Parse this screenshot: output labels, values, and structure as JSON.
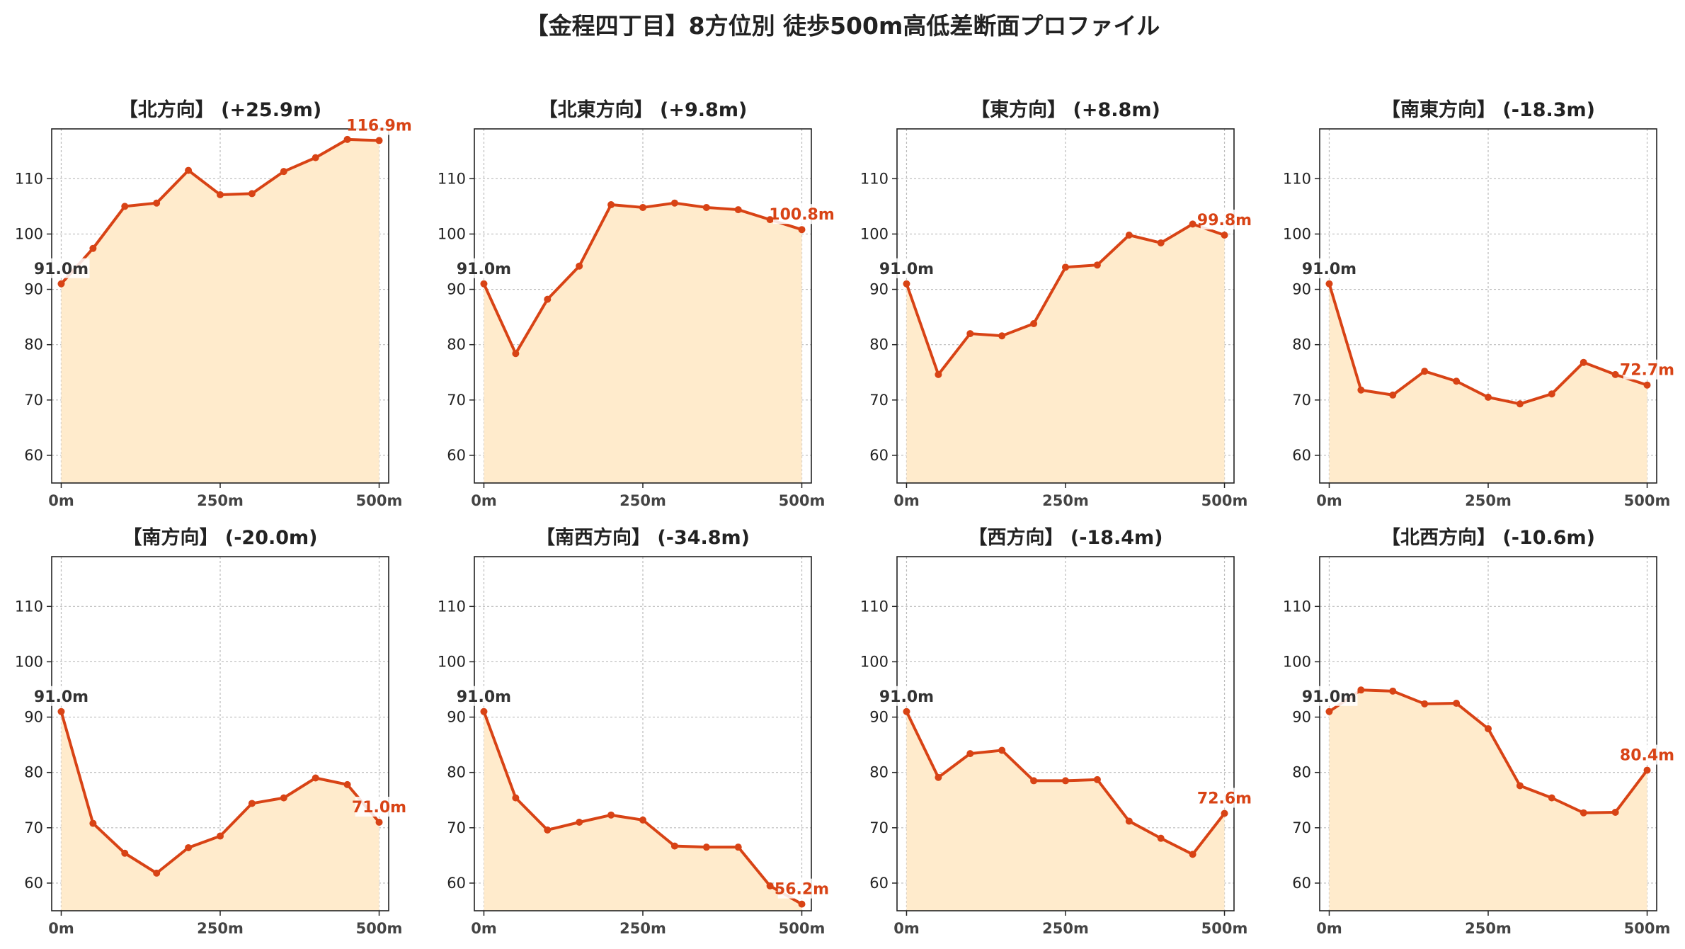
{
  "title": "【金程四丁目】8方位別 徒歩500m高低差断面プロファイル",
  "colors": {
    "line": "#D84315",
    "fill": "#FFEBCC",
    "start_label": "#333333",
    "end_label": "#D84315",
    "grid": "#bbbbbb",
    "axis": "#222222"
  },
  "chart_data": [
    {
      "type": "area",
      "title": "【北方向】 (+25.9m)",
      "x": [
        0,
        50,
        100,
        150,
        200,
        250,
        300,
        350,
        400,
        450,
        500
      ],
      "y": [
        91.0,
        97.4,
        105.0,
        105.6,
        111.5,
        107.1,
        107.3,
        111.3,
        113.8,
        117.1,
        116.9
      ],
      "xticks": [
        "0m",
        "250m",
        "500m"
      ],
      "yticks": [
        60,
        70,
        80,
        90,
        100,
        110
      ],
      "xlim": [
        -15,
        515
      ],
      "ylim": [
        55,
        119
      ],
      "grid": true,
      "start_label": "91.0m",
      "end_label": "116.9m"
    },
    {
      "type": "area",
      "title": "【北東方向】 (+9.8m)",
      "x": [
        0,
        50,
        100,
        150,
        200,
        250,
        300,
        350,
        400,
        450,
        500
      ],
      "y": [
        91.0,
        78.4,
        88.2,
        94.2,
        105.3,
        104.8,
        105.6,
        104.8,
        104.4,
        102.6,
        100.8
      ],
      "xticks": [
        "0m",
        "250m",
        "500m"
      ],
      "yticks": [
        60,
        70,
        80,
        90,
        100,
        110
      ],
      "xlim": [
        -15,
        515
      ],
      "ylim": [
        55,
        119
      ],
      "grid": true,
      "start_label": "91.0m",
      "end_label": "100.8m"
    },
    {
      "type": "area",
      "title": "【東方向】 (+8.8m)",
      "x": [
        0,
        50,
        100,
        150,
        200,
        250,
        300,
        350,
        400,
        450,
        500
      ],
      "y": [
        91.0,
        74.6,
        82.0,
        81.6,
        83.8,
        94.0,
        94.4,
        99.8,
        98.4,
        101.8,
        99.8
      ],
      "xticks": [
        "0m",
        "250m",
        "500m"
      ],
      "yticks": [
        60,
        70,
        80,
        90,
        100,
        110
      ],
      "xlim": [
        -15,
        515
      ],
      "ylim": [
        55,
        119
      ],
      "grid": true,
      "start_label": "91.0m",
      "end_label": "99.8m"
    },
    {
      "type": "area",
      "title": "【南東方向】 (-18.3m)",
      "x": [
        0,
        50,
        100,
        150,
        200,
        250,
        300,
        350,
        400,
        450,
        500
      ],
      "y": [
        91.0,
        71.8,
        70.9,
        75.2,
        73.4,
        70.5,
        69.3,
        71.1,
        76.8,
        74.6,
        72.7
      ],
      "xticks": [
        "0m",
        "250m",
        "500m"
      ],
      "yticks": [
        60,
        70,
        80,
        90,
        100,
        110
      ],
      "xlim": [
        -15,
        515
      ],
      "ylim": [
        55,
        119
      ],
      "grid": true,
      "start_label": "91.0m",
      "end_label": "72.7m"
    },
    {
      "type": "area",
      "title": "【南方向】 (-20.0m)",
      "x": [
        0,
        50,
        100,
        150,
        200,
        250,
        300,
        350,
        400,
        450,
        500
      ],
      "y": [
        91.0,
        70.8,
        65.4,
        61.8,
        66.4,
        68.5,
        74.4,
        75.4,
        79.0,
        77.8,
        71.0
      ],
      "xticks": [
        "0m",
        "250m",
        "500m"
      ],
      "yticks": [
        60,
        70,
        80,
        90,
        100,
        110
      ],
      "xlim": [
        -15,
        515
      ],
      "ylim": [
        55,
        119
      ],
      "grid": true,
      "start_label": "91.0m",
      "end_label": "71.0m"
    },
    {
      "type": "area",
      "title": "【南西方向】 (-34.8m)",
      "x": [
        0,
        50,
        100,
        150,
        200,
        250,
        300,
        350,
        400,
        450,
        500
      ],
      "y": [
        91.0,
        75.4,
        69.6,
        71.0,
        72.3,
        71.4,
        66.7,
        66.5,
        66.5,
        59.5,
        56.2
      ],
      "xticks": [
        "0m",
        "250m",
        "500m"
      ],
      "yticks": [
        60,
        70,
        80,
        90,
        100,
        110
      ],
      "xlim": [
        -15,
        515
      ],
      "ylim": [
        55,
        119
      ],
      "grid": true,
      "start_label": "91.0m",
      "end_label": "56.2m"
    },
    {
      "type": "area",
      "title": "【西方向】 (-18.4m)",
      "x": [
        0,
        50,
        100,
        150,
        200,
        250,
        300,
        350,
        400,
        450,
        500
      ],
      "y": [
        91.0,
        79.1,
        83.4,
        84.0,
        78.5,
        78.5,
        78.7,
        71.2,
        68.1,
        65.2,
        72.6
      ],
      "xticks": [
        "0m",
        "250m",
        "500m"
      ],
      "yticks": [
        60,
        70,
        80,
        90,
        100,
        110
      ],
      "xlim": [
        -15,
        515
      ],
      "ylim": [
        55,
        119
      ],
      "grid": true,
      "start_label": "91.0m",
      "end_label": "72.6m"
    },
    {
      "type": "area",
      "title": "【北西方向】 (-10.6m)",
      "x": [
        0,
        50,
        100,
        150,
        200,
        250,
        300,
        350,
        400,
        450,
        500
      ],
      "y": [
        91.0,
        94.9,
        94.7,
        92.4,
        92.5,
        87.9,
        77.6,
        75.4,
        72.7,
        72.8,
        80.4
      ],
      "xticks": [
        "0m",
        "250m",
        "500m"
      ],
      "yticks": [
        60,
        70,
        80,
        90,
        100,
        110
      ],
      "xlim": [
        -15,
        515
      ],
      "ylim": [
        55,
        119
      ],
      "grid": true,
      "start_label": "91.0m",
      "end_label": "80.4m"
    }
  ]
}
